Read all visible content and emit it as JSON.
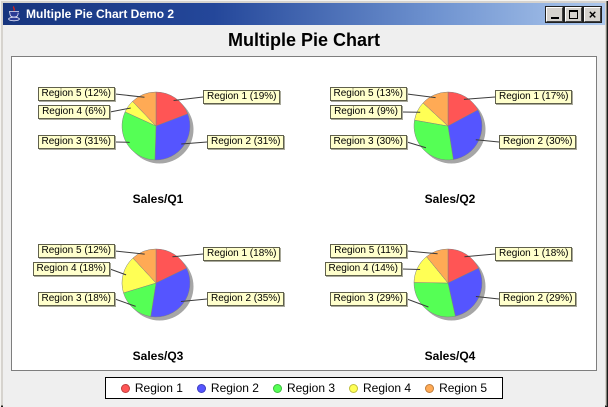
{
  "window": {
    "title": "Multiple Pie Chart Demo 2",
    "controls": {
      "minimize": "minimize",
      "maximize": "maximize",
      "close": "close"
    }
  },
  "heading": "Multiple Pie Chart",
  "chart_data": {
    "type": "pie",
    "title": "Multiple Pie Chart",
    "categories": [
      "Region 1",
      "Region 2",
      "Region 3",
      "Region 4",
      "Region 5"
    ],
    "colors": [
      "#FF5555",
      "#5555FF",
      "#55FF55",
      "#FFFF55",
      "#FFAA55"
    ],
    "legend_position": "bottom",
    "charts": [
      {
        "title": "Sales/Q1",
        "values": [
          19,
          31,
          31,
          6,
          12
        ],
        "labels": [
          "Region 1 (19%)",
          "Region 2 (31%)",
          "Region 3 (31%)",
          "Region 4 (6%)",
          "Region 5 (12%)"
        ]
      },
      {
        "title": "Sales/Q2",
        "values": [
          17,
          30,
          30,
          9,
          13
        ],
        "labels": [
          "Region 1 (17%)",
          "Region 2 (30%)",
          "Region 3 (30%)",
          "Region 4 (9%)",
          "Region 5 (13%)"
        ]
      },
      {
        "title": "Sales/Q3",
        "values": [
          18,
          35,
          18,
          18,
          12
        ],
        "labels": [
          "Region 1 (18%)",
          "Region 2 (35%)",
          "Region 3 (18%)",
          "Region 4 (18%)",
          "Region 5 (12%)"
        ]
      },
      {
        "title": "Sales/Q4",
        "values": [
          18,
          29,
          29,
          14,
          11
        ],
        "labels": [
          "Region 1 (18%)",
          "Region 2 (29%)",
          "Region 3 (29%)",
          "Region 4 (14%)",
          "Region 5 (11%)"
        ]
      }
    ]
  }
}
